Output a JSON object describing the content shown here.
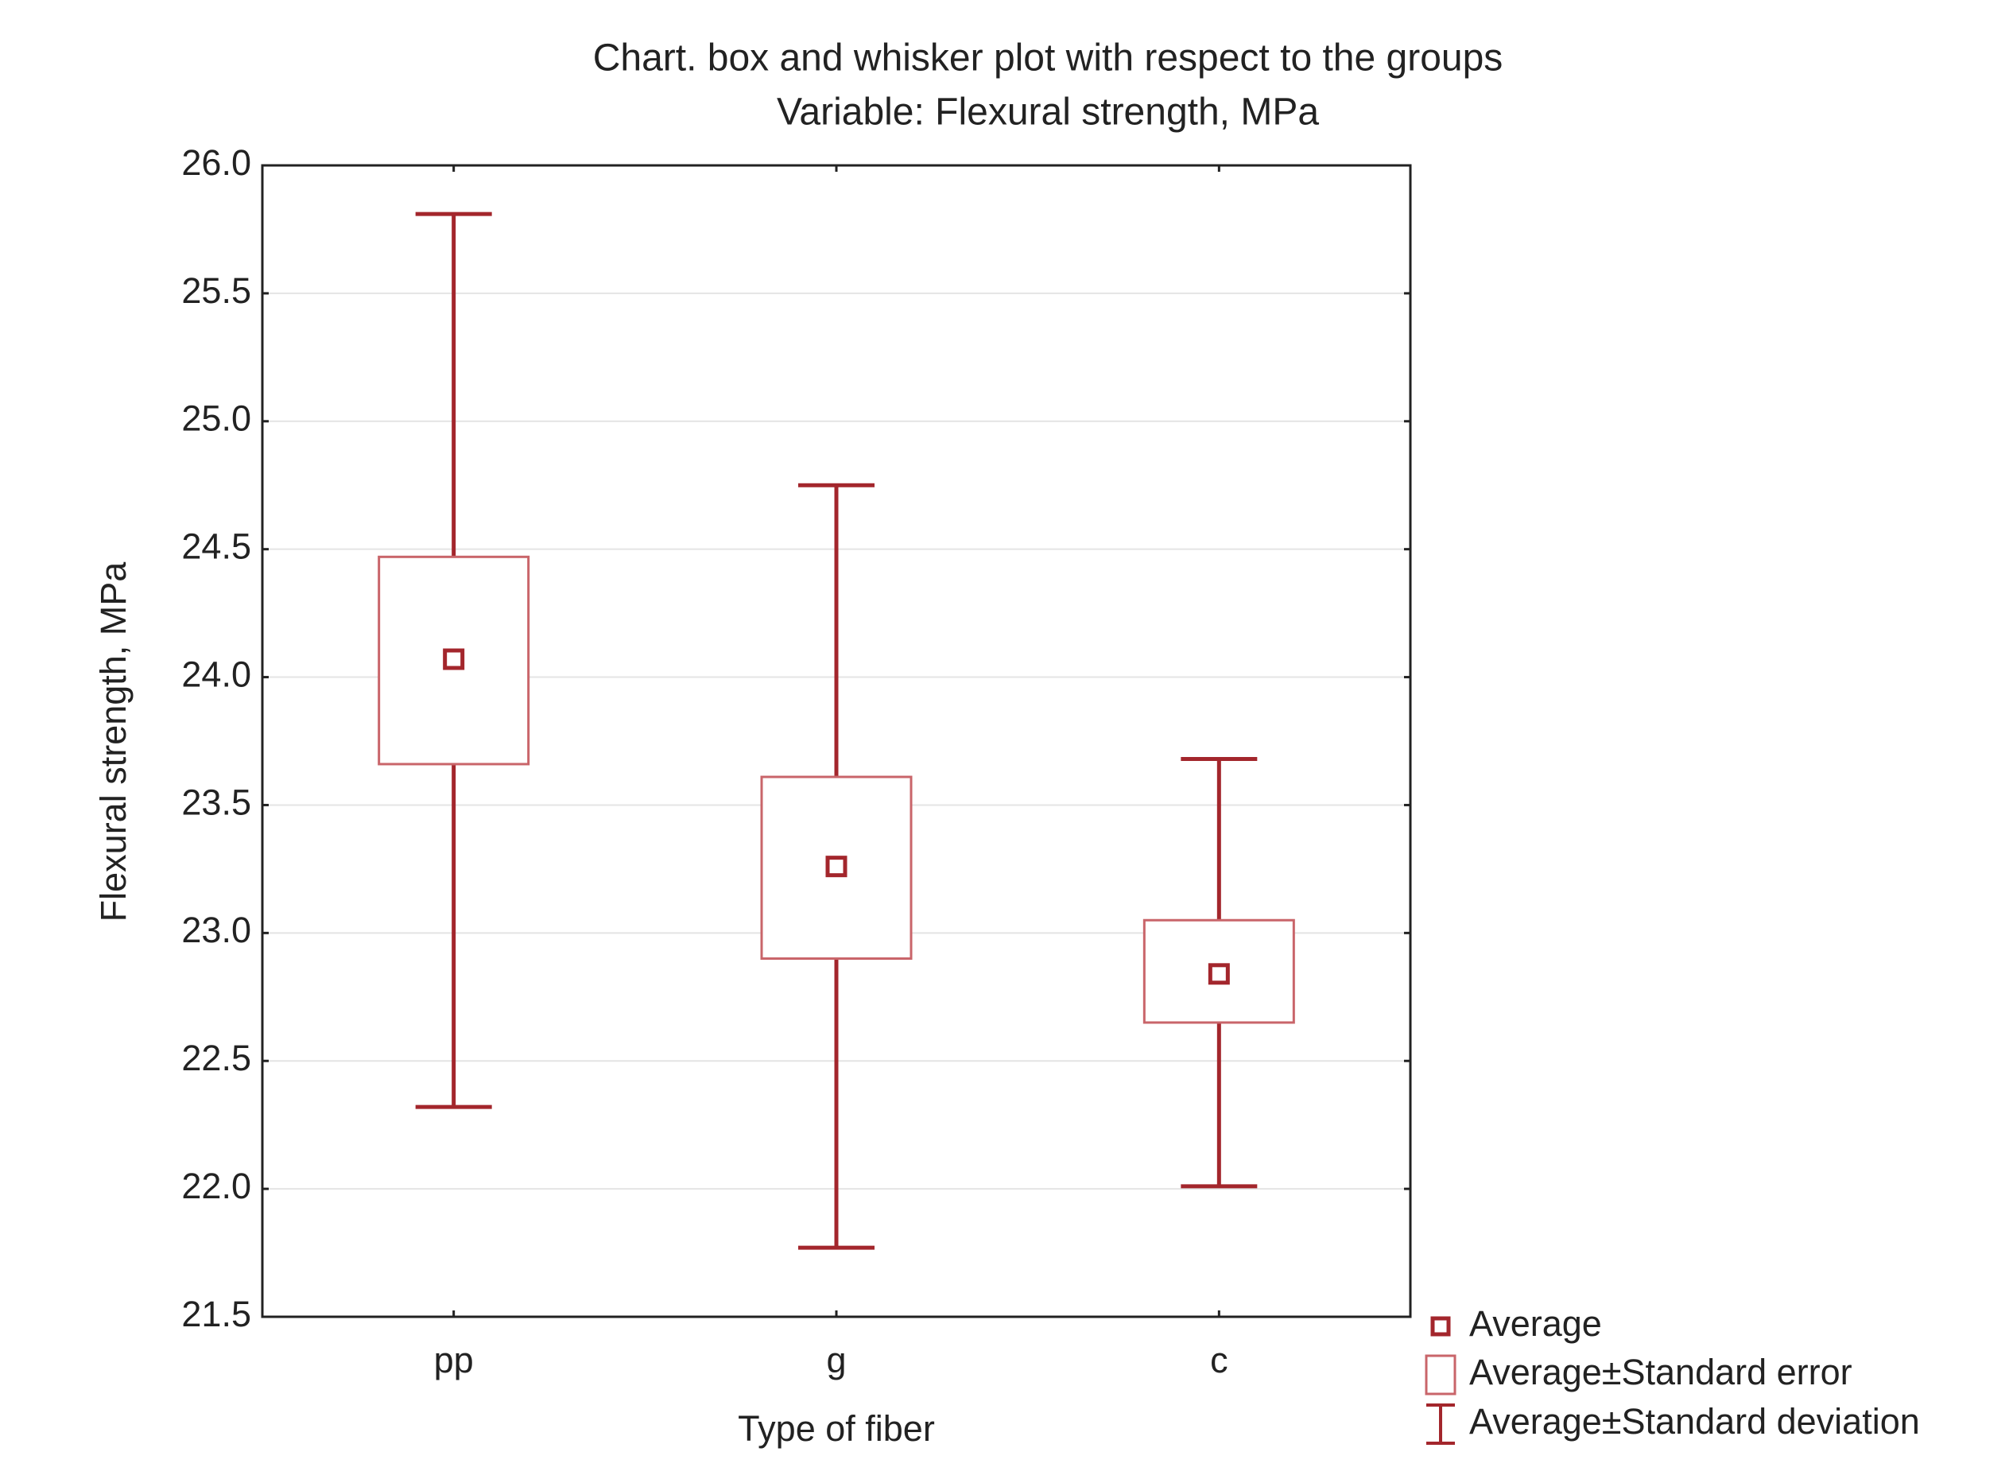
{
  "chart_data": {
    "type": "box",
    "title": "Chart. box and whisker plot with respect to the groups",
    "subtitle": "Variable: Flexural strength, MPa",
    "x_label": "Type of fiber",
    "y_label": "Flexural strength, MPa",
    "categories": [
      "pp",
      "g",
      "c"
    ],
    "color": "#a3262c",
    "boxes": [
      {
        "mean": 24.07,
        "se": [
          23.66,
          24.47
        ],
        "sd": [
          22.32,
          25.81
        ]
      },
      {
        "mean": 23.26,
        "se": [
          22.9,
          23.61
        ],
        "sd": [
          21.77,
          24.75
        ]
      },
      {
        "mean": 22.84,
        "se": [
          22.65,
          23.05
        ],
        "sd": [
          22.01,
          23.68
        ]
      }
    ],
    "legend": [
      "Average",
      "Average±Standard error",
      "Average±Standard deviation"
    ],
    "legend_position": "bottom-right",
    "ylim": [
      21.5,
      26.0
    ],
    "yticks": [
      {
        "value": 21.5,
        "label": "21.5"
      },
      {
        "value": 22,
        "label": "22.0"
      },
      {
        "value": 22.5,
        "label": "22.5"
      },
      {
        "value": 23,
        "label": "23.0"
      },
      {
        "value": 23.5,
        "label": "23.5"
      },
      {
        "value": 24,
        "label": "24.0"
      },
      {
        "value": 24.5,
        "label": "24.5"
      },
      {
        "value": 25,
        "label": "25.0"
      },
      {
        "value": 25.5,
        "label": "25.5"
      },
      {
        "value": 26,
        "label": "26.0"
      }
    ],
    "grid": true
  }
}
